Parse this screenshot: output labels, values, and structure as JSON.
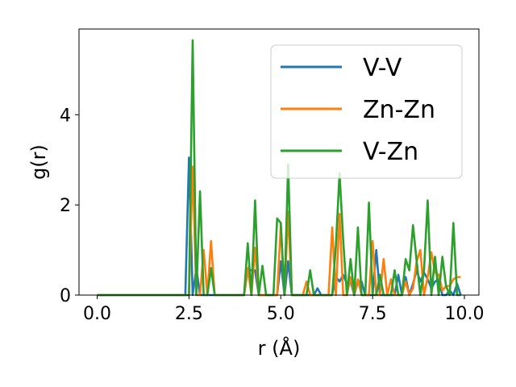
{
  "chart_data": {
    "type": "line",
    "title": "",
    "xlabel": "r (Å)",
    "ylabel": "g(r)",
    "xlim": [
      -0.495,
      10.395
    ],
    "ylim": [
      0,
      5.9
    ],
    "xticks": [
      0.0,
      2.5,
      5.0,
      7.5,
      10.0
    ],
    "xtick_labels": [
      "0.0",
      "2.5",
      "5.0",
      "7.5",
      "10.0"
    ],
    "yticks": [
      0,
      2,
      4
    ],
    "ytick_labels": [
      "0",
      "2",
      "4"
    ],
    "grid": false,
    "legend_position": "top-right",
    "x": [
      0.0,
      0.1,
      0.2,
      0.3,
      0.4,
      0.5,
      0.6,
      0.7,
      0.8,
      0.9,
      1.0,
      1.1,
      1.2,
      1.3,
      1.4,
      1.5,
      1.6,
      1.7,
      1.8,
      1.9,
      2.0,
      2.1,
      2.2,
      2.3,
      2.4,
      2.5,
      2.6,
      2.7,
      2.8,
      2.9,
      3.0,
      3.1,
      3.2,
      3.3,
      3.4,
      3.5,
      3.6,
      3.7,
      3.8,
      3.9,
      4.0,
      4.1,
      4.2,
      4.3,
      4.4,
      4.5,
      4.6,
      4.7,
      4.8,
      4.9,
      5.0,
      5.1,
      5.2,
      5.3,
      5.4,
      5.5,
      5.6,
      5.7,
      5.8,
      5.9,
      6.0,
      6.1,
      6.2,
      6.3,
      6.4,
      6.5,
      6.6,
      6.7,
      6.8,
      6.9,
      7.0,
      7.1,
      7.2,
      7.3,
      7.4,
      7.5,
      7.6,
      7.7,
      7.8,
      7.9,
      8.0,
      8.1,
      8.2,
      8.3,
      8.4,
      8.5,
      8.6,
      8.7,
      8.8,
      8.9,
      9.0,
      9.1,
      9.2,
      9.3,
      9.4,
      9.5,
      9.6,
      9.7,
      9.8,
      9.9
    ],
    "series": [
      {
        "name": "V-V",
        "color": "#1f77b4",
        "values": [
          0,
          0,
          0,
          0,
          0,
          0,
          0,
          0,
          0,
          0,
          0,
          0,
          0,
          0,
          0,
          0,
          0,
          0,
          0,
          0,
          0,
          0,
          0,
          0,
          0,
          3.05,
          0,
          0.6,
          0,
          0,
          0,
          0,
          0,
          0,
          0,
          0,
          0,
          0,
          0,
          0,
          0,
          0.55,
          0.55,
          0.55,
          0,
          0,
          0,
          0,
          0,
          0,
          0.75,
          0,
          0.75,
          0,
          0,
          0,
          0,
          0,
          0,
          0,
          0.15,
          0,
          0,
          0,
          0,
          0.4,
          0.3,
          0.45,
          0.25,
          0.3,
          0,
          0.3,
          0.3,
          0,
          0,
          0,
          1.0,
          0,
          0,
          0,
          0,
          0,
          0.45,
          0,
          0.4,
          0,
          0.25,
          0.55,
          0.3,
          0.5,
          0.35,
          0.15,
          0.3,
          0.35,
          0,
          0,
          0.1,
          0,
          0.25,
          0
        ]
      },
      {
        "name": "Zn-Zn",
        "color": "#ff7f0e",
        "values": [
          0,
          0,
          0,
          0,
          0,
          0,
          0,
          0,
          0,
          0,
          0,
          0,
          0,
          0,
          0,
          0,
          0,
          0,
          0,
          0,
          0,
          0,
          0,
          0,
          0,
          0,
          2.85,
          0,
          0,
          1.0,
          0,
          1.2,
          0,
          0,
          0,
          0,
          0,
          0,
          0,
          0,
          0,
          0.6,
          0,
          1.05,
          0,
          0,
          0,
          0,
          0,
          0,
          1.55,
          0,
          1.85,
          0,
          0,
          0,
          0,
          0.3,
          0,
          0,
          0,
          0,
          0,
          0,
          1.5,
          0,
          1.8,
          0,
          0,
          0.4,
          0,
          0.35,
          0,
          0,
          0,
          1.2,
          0,
          0,
          0.8,
          0,
          0.35,
          0,
          0,
          0,
          0.3,
          0,
          0.15,
          0.75,
          1.0,
          0,
          0.4,
          0.95,
          0.5,
          0.45,
          0.1,
          0.2,
          0.2,
          0.35,
          0.4,
          0.4
        ]
      },
      {
        "name": "V-Zn",
        "color": "#2ca02c",
        "values": [
          0,
          0,
          0,
          0,
          0,
          0,
          0,
          0,
          0,
          0,
          0,
          0,
          0,
          0,
          0,
          0,
          0,
          0,
          0,
          0,
          0,
          0,
          0,
          0,
          0,
          0,
          5.65,
          0,
          2.3,
          0,
          0,
          0.6,
          0,
          0,
          0,
          0,
          0,
          0,
          0,
          0,
          0,
          1.15,
          0,
          2.1,
          0,
          0.65,
          0,
          0,
          0,
          1.7,
          1.6,
          0,
          2.9,
          0,
          0,
          0,
          0,
          0,
          0.55,
          0,
          0,
          0,
          0,
          0,
          0,
          1.1,
          2.7,
          1.2,
          0,
          0.8,
          0,
          1.5,
          0,
          0,
          2.05,
          0,
          0,
          0.45,
          0,
          0,
          0,
          0.55,
          0,
          0,
          0.8,
          0.55,
          1.55,
          0.75,
          0,
          0.55,
          2.1,
          0,
          0.85,
          0,
          0.85,
          0.2,
          0,
          1.6,
          0,
          0
        ]
      }
    ]
  }
}
